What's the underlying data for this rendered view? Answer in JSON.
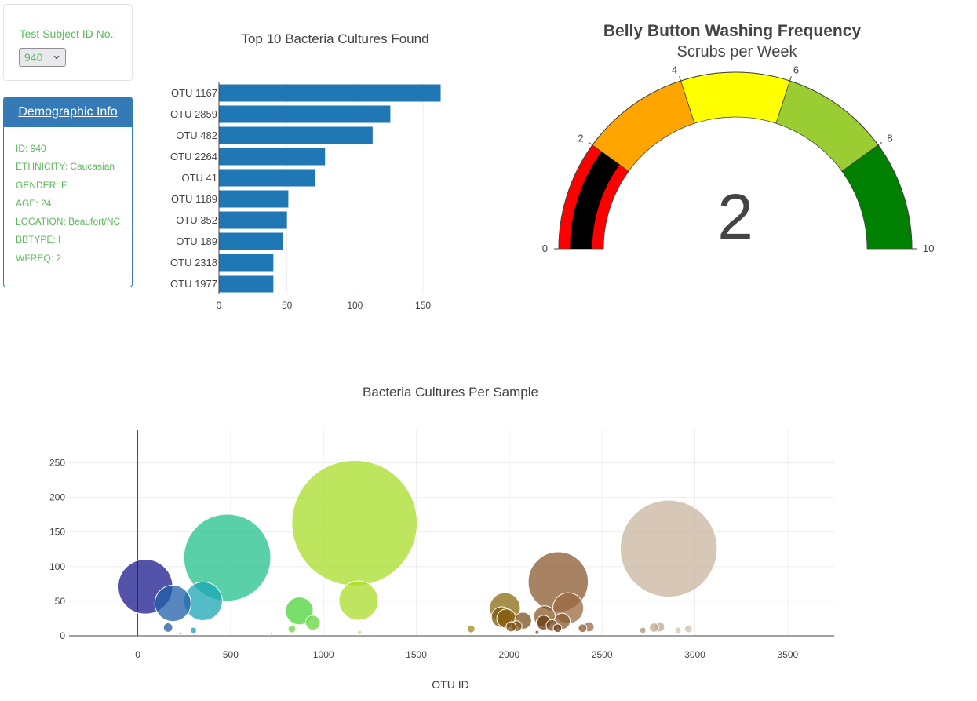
{
  "selector": {
    "label": "Test Subject ID No.:",
    "selected": "940"
  },
  "demographics": {
    "title": "Demographic Info",
    "rows": [
      "ID: 940",
      "ETHNICITY: Caucasian",
      "GENDER: F",
      "AGE: 24",
      "LOCATION: Beaufort/NC",
      "BBTYPE: I",
      "WFREQ: 2"
    ]
  },
  "colors": {
    "bar": "#1f77b4",
    "panel_header": "#337ab7",
    "label_green": "#5cb85c"
  },
  "chart_data": [
    {
      "type": "bar",
      "orientation": "horizontal",
      "title": "Top 10 Bacteria Cultures Found",
      "categories": [
        "OTU 1167",
        "OTU 2859",
        "OTU 482",
        "OTU 2264",
        "OTU 41",
        "OTU 1189",
        "OTU 352",
        "OTU 189",
        "OTU 2318",
        "OTU 1977"
      ],
      "values": [
        163,
        126,
        113,
        78,
        71,
        51,
        50,
        47,
        40,
        40
      ],
      "xticks": [
        0,
        50,
        100,
        150
      ],
      "xlim": [
        0,
        165
      ]
    },
    {
      "type": "gauge",
      "title": "Belly Button Washing Frequency",
      "subtitle": "Scrubs per Week",
      "value": 2,
      "range": [
        0,
        10
      ],
      "ticks": [
        0,
        2,
        4,
        6,
        8,
        10
      ],
      "steps": [
        {
          "range": [
            0,
            2
          ],
          "color": "#ff0000"
        },
        {
          "range": [
            2,
            4
          ],
          "color": "#ffa500"
        },
        {
          "range": [
            4,
            6
          ],
          "color": "#ffff00"
        },
        {
          "range": [
            6,
            8
          ],
          "color": "#9acd32"
        },
        {
          "range": [
            8,
            10
          ],
          "color": "#008000"
        }
      ],
      "bar_color": "#000000"
    },
    {
      "type": "scatter",
      "mode": "bubble",
      "title": "Bacteria Cultures Per Sample",
      "xlabel": "OTU ID",
      "ylabel": "",
      "xticks": [
        0,
        500,
        1000,
        1500,
        2000,
        2500,
        3000,
        3500
      ],
      "yticks": [
        0,
        50,
        100,
        150,
        200,
        250
      ],
      "xlim": [
        -370,
        3750
      ],
      "ylim": [
        0,
        297
      ],
      "grid": true,
      "points": [
        {
          "x": 41,
          "y": 71,
          "color": "#1a1a8c"
        },
        {
          "x": 189,
          "y": 47,
          "color": "#1f5fa8"
        },
        {
          "x": 163,
          "y": 12,
          "color": "#2255a0"
        },
        {
          "x": 352,
          "y": 50,
          "color": "#1aa6b3"
        },
        {
          "x": 300,
          "y": 8,
          "color": "#1a9aa8"
        },
        {
          "x": 482,
          "y": 113,
          "color": "#22c08a"
        },
        {
          "x": 870,
          "y": 36,
          "color": "#4cd43a"
        },
        {
          "x": 943,
          "y": 19,
          "color": "#66d43a"
        },
        {
          "x": 830,
          "y": 10,
          "color": "#6ad040"
        },
        {
          "x": 1167,
          "y": 163,
          "color": "#a8dc28"
        },
        {
          "x": 1189,
          "y": 51,
          "color": "#aadc28"
        },
        {
          "x": 1195,
          "y": 5,
          "color": "#b8e030"
        },
        {
          "x": 1795,
          "y": 10,
          "color": "#a08820"
        },
        {
          "x": 1977,
          "y": 40,
          "color": "#8a6a10"
        },
        {
          "x": 1960,
          "y": 27,
          "color": "#7a5a10"
        },
        {
          "x": 1985,
          "y": 25,
          "color": "#8a6010"
        },
        {
          "x": 2010,
          "y": 13,
          "color": "#7a5010"
        },
        {
          "x": 2040,
          "y": 14,
          "color": "#805818"
        },
        {
          "x": 2075,
          "y": 22,
          "color": "#7a5020"
        },
        {
          "x": 2190,
          "y": 28,
          "color": "#8a5a2a"
        },
        {
          "x": 2185,
          "y": 19,
          "color": "#6a3a10"
        },
        {
          "x": 2264,
          "y": 78,
          "color": "#8a5a30"
        },
        {
          "x": 2230,
          "y": 15,
          "color": "#7a4a20"
        },
        {
          "x": 2260,
          "y": 11,
          "color": "#6a3a10"
        },
        {
          "x": 2285,
          "y": 21,
          "color": "#8a5a30"
        },
        {
          "x": 2318,
          "y": 40,
          "color": "#9a6a40"
        },
        {
          "x": 2395,
          "y": 11,
          "color": "#8a5a30"
        },
        {
          "x": 2430,
          "y": 13,
          "color": "#9a6a48"
        },
        {
          "x": 2720,
          "y": 8,
          "color": "#b09070"
        },
        {
          "x": 2780,
          "y": 12,
          "color": "#c0a890"
        },
        {
          "x": 2810,
          "y": 13,
          "color": "#c0a890"
        },
        {
          "x": 2859,
          "y": 126,
          "color": "#c8b49e"
        },
        {
          "x": 2910,
          "y": 8,
          "color": "#d0c0b0"
        },
        {
          "x": 2965,
          "y": 10,
          "color": "#d0c0b0"
        },
        {
          "x": 2150,
          "y": 5,
          "color": "#7a4a20"
        },
        {
          "x": 1270,
          "y": 3,
          "color": "#c8e040"
        },
        {
          "x": 720,
          "y": 3,
          "color": "#3ad0a0"
        },
        {
          "x": 230,
          "y": 3,
          "color": "#1a80b0"
        }
      ]
    }
  ]
}
